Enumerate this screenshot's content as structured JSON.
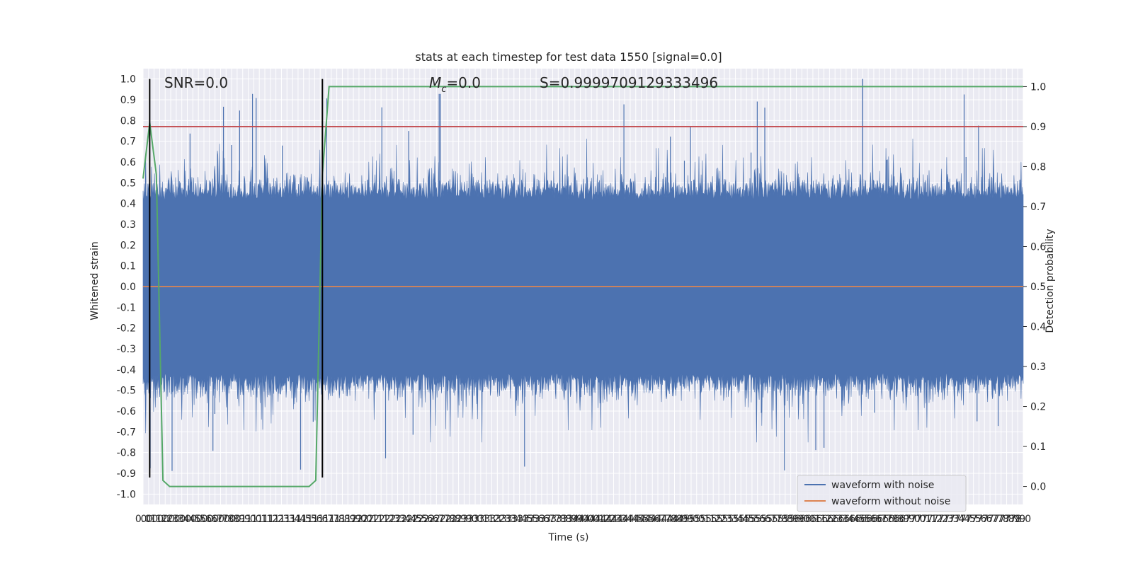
{
  "chart_data": {
    "type": "line",
    "title": "stats at each timestep for test data 1550 [signal=0.0]",
    "xlabel": "Time (s)",
    "ylabel_left": "Whitened strain",
    "ylabel_right": "Detection probability",
    "xlim": [
      0.0,
      7.95
    ],
    "ylim_left": [
      -1.05,
      1.05
    ],
    "ylim_right": [
      -0.045,
      1.045
    ],
    "grid": true,
    "legend_position": "bottom-right",
    "x_ticks_step": 0.05,
    "left_ticks": [
      "-1.0",
      "-0.9",
      "-0.8",
      "-0.7",
      "-0.6",
      "-0.5",
      "-0.4",
      "-0.3",
      "-0.2",
      "-0.1",
      "0.0",
      "0.1",
      "0.2",
      "0.3",
      "0.4",
      "0.5",
      "0.6",
      "0.7",
      "0.8",
      "0.9",
      "1.0"
    ],
    "right_ticks": [
      "0.0",
      "0.1",
      "0.2",
      "0.3",
      "0.4",
      "0.5",
      "0.6",
      "0.7",
      "0.8",
      "0.9",
      "1.0"
    ],
    "annotations": {
      "snr_label": "SNR=0.0",
      "mc_symbol": "M",
      "mc_subscript": "c",
      "mc_value": "=0.0",
      "s_label": "S=0.9999709129333496"
    },
    "series": [
      {
        "name": "waveform with noise",
        "axis": "left",
        "color": "#4c72b0",
        "envelope_peak": 1.0,
        "envelope_trough": -0.92,
        "typical_max": 0.58,
        "typical_min": -0.58
      },
      {
        "name": "waveform without noise",
        "axis": "left",
        "color": "#dd8452",
        "constant_value": 0.0
      },
      {
        "name": "detection probability",
        "axis": "right",
        "color": "#55a868",
        "x": [
          0.0,
          0.06,
          0.12,
          0.18,
          0.24,
          1.5,
          1.56,
          1.62,
          1.68,
          7.95
        ],
        "y": [
          0.77,
          0.91,
          0.78,
          0.015,
          0.0,
          0.0,
          0.015,
          0.78,
          1.0,
          1.0
        ]
      }
    ],
    "threshold_line": {
      "axis": "right",
      "value": 0.9,
      "color": "#c44e52"
    },
    "vertical_markers": {
      "x": [
        0.06,
        1.62
      ],
      "y_range": [
        -0.92,
        1.0
      ],
      "color": "#000000"
    }
  }
}
